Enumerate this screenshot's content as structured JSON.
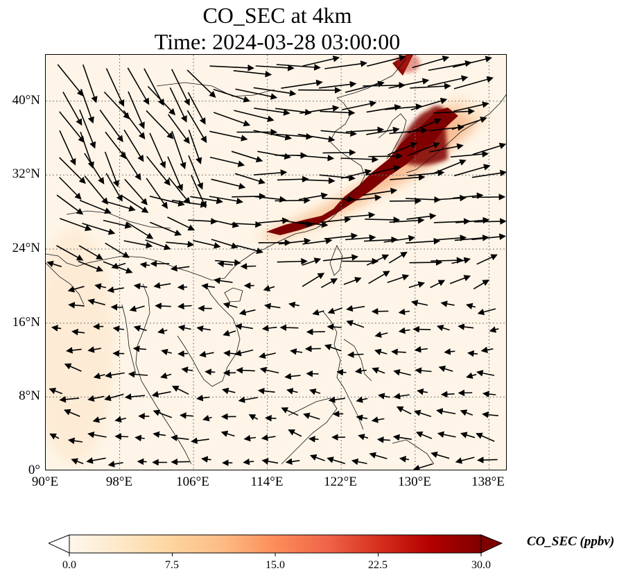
{
  "title": {
    "line1": "CO_SEC at 4km",
    "line2": "Time: 2024-03-28 03:00:00"
  },
  "map": {
    "extent": {
      "lon": [
        90,
        140
      ],
      "lat": [
        0,
        45
      ]
    },
    "lon_ticks": [
      {
        "value": 90,
        "label": "90°E"
      },
      {
        "value": 98,
        "label": "98°E"
      },
      {
        "value": 106,
        "label": "106°E"
      },
      {
        "value": 114,
        "label": "114°E"
      },
      {
        "value": 122,
        "label": "122°E"
      },
      {
        "value": 130,
        "label": "130°E"
      },
      {
        "value": 138,
        "label": "138°E"
      }
    ],
    "lat_ticks": [
      {
        "value": 0,
        "label": "0°"
      },
      {
        "value": 8,
        "label": "8°N"
      },
      {
        "value": 16,
        "label": "16°N"
      },
      {
        "value": 24,
        "label": "24°N"
      },
      {
        "value": 32,
        "label": "32°N"
      },
      {
        "value": 40,
        "label": "40°N"
      }
    ],
    "gridlines": true,
    "plume_color": "#7f0000"
  },
  "colorbar": {
    "label": "CO_SEC (ppbv)",
    "ticks": [
      "0.0",
      "7.5",
      "15.0",
      "22.5",
      "30.0"
    ],
    "min": 0,
    "max": 30,
    "colormap": [
      "#fff7ec",
      "#fee8c8",
      "#fdd49e",
      "#fdbb84",
      "#fc8d59",
      "#ef6548",
      "#d7301f",
      "#b30000",
      "#7f0000"
    ]
  }
}
